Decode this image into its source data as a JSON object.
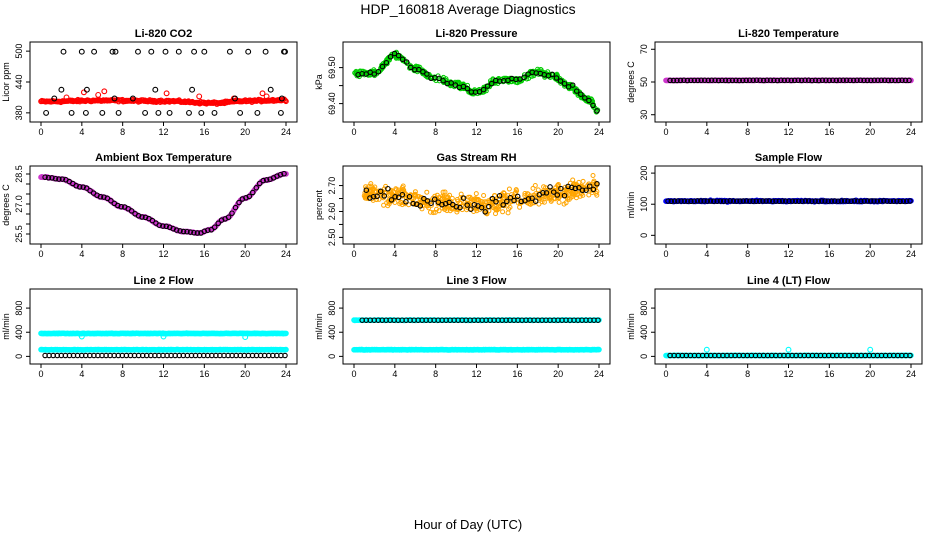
{
  "page": {
    "title": "HDP_160818  Average Diagnostics",
    "x_axis_title": "Hour of Day (UTC)"
  },
  "colors": {
    "black": "#000000",
    "red": "#ff0000",
    "green": "#00cc00",
    "magenta": "#cc33cc",
    "orange": "#ffa500",
    "blue": "#0000ff",
    "cyan": "#00ffff"
  },
  "chart_data": [
    {
      "id": "co2",
      "type": "scatter",
      "title": "Li-820 CO2",
      "ylabel": "Licor ppm",
      "xlim": [
        0,
        24
      ],
      "ylim": [
        370,
        510
      ],
      "xticks": [
        0,
        4,
        8,
        12,
        16,
        20,
        24
      ],
      "yticks": [
        380,
        440,
        500
      ],
      "series": [
        {
          "color": "red",
          "style": "dense",
          "x_range": [
            0,
            24
          ],
          "y_base": [
            [
              0,
              402
            ],
            [
              6,
              404
            ],
            [
              12,
              403
            ],
            [
              17,
              399
            ],
            [
              20,
              403
            ],
            [
              24,
              405
            ]
          ],
          "spread": 3
        },
        {
          "color": "red",
          "style": "points",
          "x": [
            2.5,
            4.2,
            5.6,
            6.2,
            12.3,
            15.5,
            18.9,
            21.7,
            22.1
          ],
          "y": [
            410,
            420,
            415,
            422,
            418,
            412,
            408,
            418,
            412
          ]
        },
        {
          "color": "black",
          "style": "points",
          "x": [
            0.5,
            1.3,
            2.2,
            3.0,
            4.0,
            4.4,
            5.2,
            6.0,
            7.0,
            7.3,
            7.6,
            9.5,
            10.2,
            10.8,
            11.5,
            12.2,
            12.6,
            13.5,
            14.5,
            15.0,
            15.7,
            16.0,
            17.0,
            18.5,
            19.5,
            20.3,
            21.2,
            22.0,
            23.5,
            23.8,
            23.9,
            2.0,
            4.5,
            7.2,
            9.0,
            11.2,
            14.8,
            19.0,
            22.5,
            23.6
          ],
          "y": [
            380,
            408,
            499,
            380,
            499,
            380,
            499,
            380,
            499,
            499,
            380,
            499,
            380,
            499,
            380,
            499,
            380,
            499,
            380,
            499,
            380,
            499,
            380,
            499,
            380,
            499,
            380,
            499,
            380,
            499,
            499,
            425,
            425,
            408,
            408,
            425,
            425,
            408,
            425,
            408
          ]
        }
      ]
    },
    {
      "id": "pressure",
      "type": "scatter",
      "title": "Li-820 Pressure",
      "ylabel": "kPa",
      "xlim": [
        0,
        24
      ],
      "ylim": [
        69.36,
        69.56
      ],
      "xticks": [
        0,
        4,
        8,
        12,
        16,
        20,
        24
      ],
      "yticks": [
        69.4,
        69.45,
        69.5
      ],
      "ytick_labels": [
        "69.40",
        "",
        "69.50"
      ],
      "series": [
        {
          "color": "green",
          "style": "band",
          "x_range": [
            0,
            24
          ],
          "y_base": [
            [
              0,
              69.483
            ],
            [
              2,
              69.485
            ],
            [
              4,
              69.535
            ],
            [
              6,
              69.495
            ],
            [
              8,
              69.47
            ],
            [
              10,
              69.452
            ],
            [
              12,
              69.432
            ],
            [
              14,
              69.462
            ],
            [
              16,
              69.466
            ],
            [
              18,
              69.488
            ],
            [
              19.5,
              69.476
            ],
            [
              21,
              69.45
            ],
            [
              23,
              69.41
            ],
            [
              24,
              69.375
            ]
          ],
          "spread": 0.012
        },
        {
          "color": "black",
          "style": "curve_points",
          "n": 60,
          "x_range": [
            0.4,
            23.8
          ],
          "y_base": [
            [
              0,
              69.483
            ],
            [
              2,
              69.485
            ],
            [
              4,
              69.535
            ],
            [
              6,
              69.495
            ],
            [
              8,
              69.47
            ],
            [
              10,
              69.452
            ],
            [
              12,
              69.432
            ],
            [
              14,
              69.462
            ],
            [
              16,
              69.466
            ],
            [
              18,
              69.488
            ],
            [
              19.5,
              69.476
            ],
            [
              21,
              69.45
            ],
            [
              23,
              69.41
            ],
            [
              24,
              69.375
            ]
          ],
          "spread": 0.008
        }
      ]
    },
    {
      "id": "li_temp",
      "type": "scatter",
      "title": "Li-820 Temperature",
      "ylabel": "degrees C",
      "xlim": [
        0,
        24
      ],
      "ylim": [
        28,
        72
      ],
      "xticks": [
        0,
        4,
        8,
        12,
        16,
        20,
        24
      ],
      "yticks": [
        30,
        50,
        70
      ],
      "series": [
        {
          "color": "magenta",
          "style": "dense",
          "x_range": [
            0,
            24
          ],
          "y_base": [
            [
              0,
              51
            ],
            [
              24,
              51
            ]
          ],
          "spread": 0.2
        },
        {
          "color": "black",
          "style": "curve_points",
          "n": 70,
          "x_range": [
            0.4,
            23.8
          ],
          "y_base": [
            [
              0,
              51
            ],
            [
              24,
              51
            ]
          ],
          "spread": 0.1
        }
      ]
    },
    {
      "id": "box_temp",
      "type": "scatter",
      "title": "Ambient Box Temperature",
      "ylabel": "degrees C",
      "xlim": [
        0,
        24
      ],
      "ylim": [
        25.2,
        28.7
      ],
      "xticks": [
        0,
        4,
        8,
        12,
        16,
        20,
        24
      ],
      "yticks": [
        25.5,
        26.0,
        26.5,
        27.0,
        27.5,
        28.0,
        28.5
      ],
      "ytick_labels": [
        "25.5",
        "",
        "",
        "27.0",
        "",
        "",
        "28.5"
      ],
      "series": [
        {
          "color": "magenta",
          "style": "dense",
          "x_range": [
            0,
            24
          ],
          "y_base": [
            [
              0,
              28.35
            ],
            [
              2,
              28.25
            ],
            [
              4,
              27.85
            ],
            [
              6,
              27.35
            ],
            [
              8,
              26.85
            ],
            [
              10,
              26.35
            ],
            [
              12,
              25.9
            ],
            [
              14,
              25.62
            ],
            [
              15.5,
              25.55
            ],
            [
              16.5,
              25.7
            ],
            [
              18,
              26.25
            ],
            [
              20,
              27.3
            ],
            [
              22,
              28.2
            ],
            [
              24,
              28.52
            ]
          ],
          "spread": 0.03
        },
        {
          "color": "black",
          "style": "curve_points",
          "n": 70,
          "x_range": [
            0.4,
            23.8
          ],
          "y_base": [
            [
              0,
              28.35
            ],
            [
              2,
              28.25
            ],
            [
              4,
              27.85
            ],
            [
              6,
              27.35
            ],
            [
              8,
              26.85
            ],
            [
              10,
              26.35
            ],
            [
              12,
              25.9
            ],
            [
              14,
              25.62
            ],
            [
              15.5,
              25.55
            ],
            [
              16.5,
              25.7
            ],
            [
              18,
              26.25
            ],
            [
              20,
              27.3
            ],
            [
              22,
              28.2
            ],
            [
              24,
              28.52
            ]
          ],
          "spread": 0.02
        }
      ]
    },
    {
      "id": "rh",
      "type": "scatter",
      "title": "Gas Stream RH",
      "ylabel": "percent",
      "xlim": [
        0,
        24
      ],
      "ylim": [
        2.49,
        2.76
      ],
      "xticks": [
        0,
        4,
        8,
        12,
        16,
        20,
        24
      ],
      "yticks": [
        2.5,
        2.55,
        2.6,
        2.65,
        2.7
      ],
      "ytick_labels": [
        "2.50",
        "",
        "2.60",
        "",
        "2.70"
      ],
      "series": [
        {
          "color": "orange",
          "style": "band",
          "x_range": [
            1,
            24
          ],
          "y_base": [
            [
              1,
              2.675
            ],
            [
              4,
              2.66
            ],
            [
              8,
              2.635
            ],
            [
              12,
              2.625
            ],
            [
              16,
              2.645
            ],
            [
              20,
              2.675
            ],
            [
              24,
              2.695
            ]
          ],
          "spread": 0.055
        },
        {
          "color": "black",
          "style": "curve_points",
          "n": 65,
          "x_range": [
            1.2,
            23.8
          ],
          "y_base": [
            [
              1,
              2.675
            ],
            [
              4,
              2.66
            ],
            [
              8,
              2.635
            ],
            [
              12,
              2.625
            ],
            [
              16,
              2.645
            ],
            [
              20,
              2.675
            ],
            [
              24,
              2.695
            ]
          ],
          "spread": 0.035
        }
      ]
    },
    {
      "id": "sample_flow",
      "type": "scatter",
      "title": "Sample Flow",
      "ylabel": "ml/min",
      "xlim": [
        0,
        24
      ],
      "ylim": [
        -15,
        210
      ],
      "xticks": [
        0,
        4,
        8,
        12,
        16,
        20,
        24
      ],
      "yticks": [
        0,
        100,
        200
      ],
      "series": [
        {
          "color": "blue",
          "style": "dense",
          "x_range": [
            0,
            24
          ],
          "y_base": [
            [
              0,
              110
            ],
            [
              24,
              110
            ]
          ],
          "spread": 3
        },
        {
          "color": "black",
          "style": "curve_points",
          "n": 75,
          "x_range": [
            0.2,
            23.9
          ],
          "y_base": [
            [
              0,
              110
            ],
            [
              24,
              110
            ]
          ],
          "spread": 1
        }
      ]
    },
    {
      "id": "line2_flow",
      "type": "scatter",
      "title": "Line 2 Flow",
      "ylabel": "ml/min",
      "xlim": [
        0,
        24
      ],
      "ylim": [
        -60,
        1050
      ],
      "xticks": [
        0,
        4,
        8,
        12,
        16,
        20,
        24
      ],
      "yticks": [
        0,
        400,
        800
      ],
      "series": [
        {
          "color": "cyan",
          "style": "dense",
          "x_range": [
            0,
            24
          ],
          "y_base": [
            [
              0,
              380
            ],
            [
              24,
              380
            ]
          ],
          "spread": 6
        },
        {
          "color": "cyan",
          "style": "dense",
          "x_range": [
            0,
            24
          ],
          "y_base": [
            [
              0,
              110
            ],
            [
              24,
              110
            ]
          ],
          "spread": 6
        },
        {
          "color": "cyan",
          "style": "points",
          "x": [
            4.0,
            12.0,
            20.0
          ],
          "y": [
            330,
            330,
            320
          ]
        },
        {
          "color": "black",
          "style": "curve_points",
          "n": 60,
          "x_range": [
            0.4,
            23.9
          ],
          "y_base": [
            [
              0,
              15
            ],
            [
              24,
              15
            ]
          ],
          "spread": 0
        }
      ]
    },
    {
      "id": "line3_flow",
      "type": "scatter",
      "title": "Line 3 Flow",
      "ylabel": "ml/min",
      "xlim": [
        0,
        24
      ],
      "ylim": [
        -60,
        1050
      ],
      "xticks": [
        0,
        4,
        8,
        12,
        16,
        20,
        24
      ],
      "yticks": [
        0,
        400,
        800
      ],
      "series": [
        {
          "color": "cyan",
          "style": "dense",
          "x_range": [
            0,
            24
          ],
          "y_base": [
            [
              0,
              600
            ],
            [
              24,
              600
            ]
          ],
          "spread": 6
        },
        {
          "color": "cyan",
          "style": "dense",
          "x_range": [
            0,
            24
          ],
          "y_base": [
            [
              0,
              110
            ],
            [
              24,
              110
            ]
          ],
          "spread": 6
        },
        {
          "color": "black",
          "style": "curve_points",
          "n": 60,
          "x_range": [
            0.8,
            23.9
          ],
          "y_base": [
            [
              0,
              600
            ],
            [
              24,
              600
            ]
          ],
          "spread": 0
        }
      ]
    },
    {
      "id": "line4_flow",
      "type": "scatter",
      "title": "Line 4 (LT) Flow",
      "ylabel": "ml/min",
      "xlim": [
        0,
        24
      ],
      "ylim": [
        -60,
        1050
      ],
      "xticks": [
        0,
        4,
        8,
        12,
        16,
        20,
        24
      ],
      "yticks": [
        0,
        400,
        800
      ],
      "series": [
        {
          "color": "cyan",
          "style": "dense",
          "x_range": [
            0,
            24
          ],
          "y_base": [
            [
              0,
              15
            ],
            [
              24,
              15
            ]
          ],
          "spread": 4
        },
        {
          "color": "cyan",
          "style": "points",
          "x": [
            4.0,
            12.0,
            20.0
          ],
          "y": [
            110,
            110,
            110
          ]
        },
        {
          "color": "black",
          "style": "curve_points",
          "n": 60,
          "x_range": [
            0.4,
            23.9
          ],
          "y_base": [
            [
              0,
              15
            ],
            [
              24,
              15
            ]
          ],
          "spread": 0
        }
      ]
    }
  ]
}
